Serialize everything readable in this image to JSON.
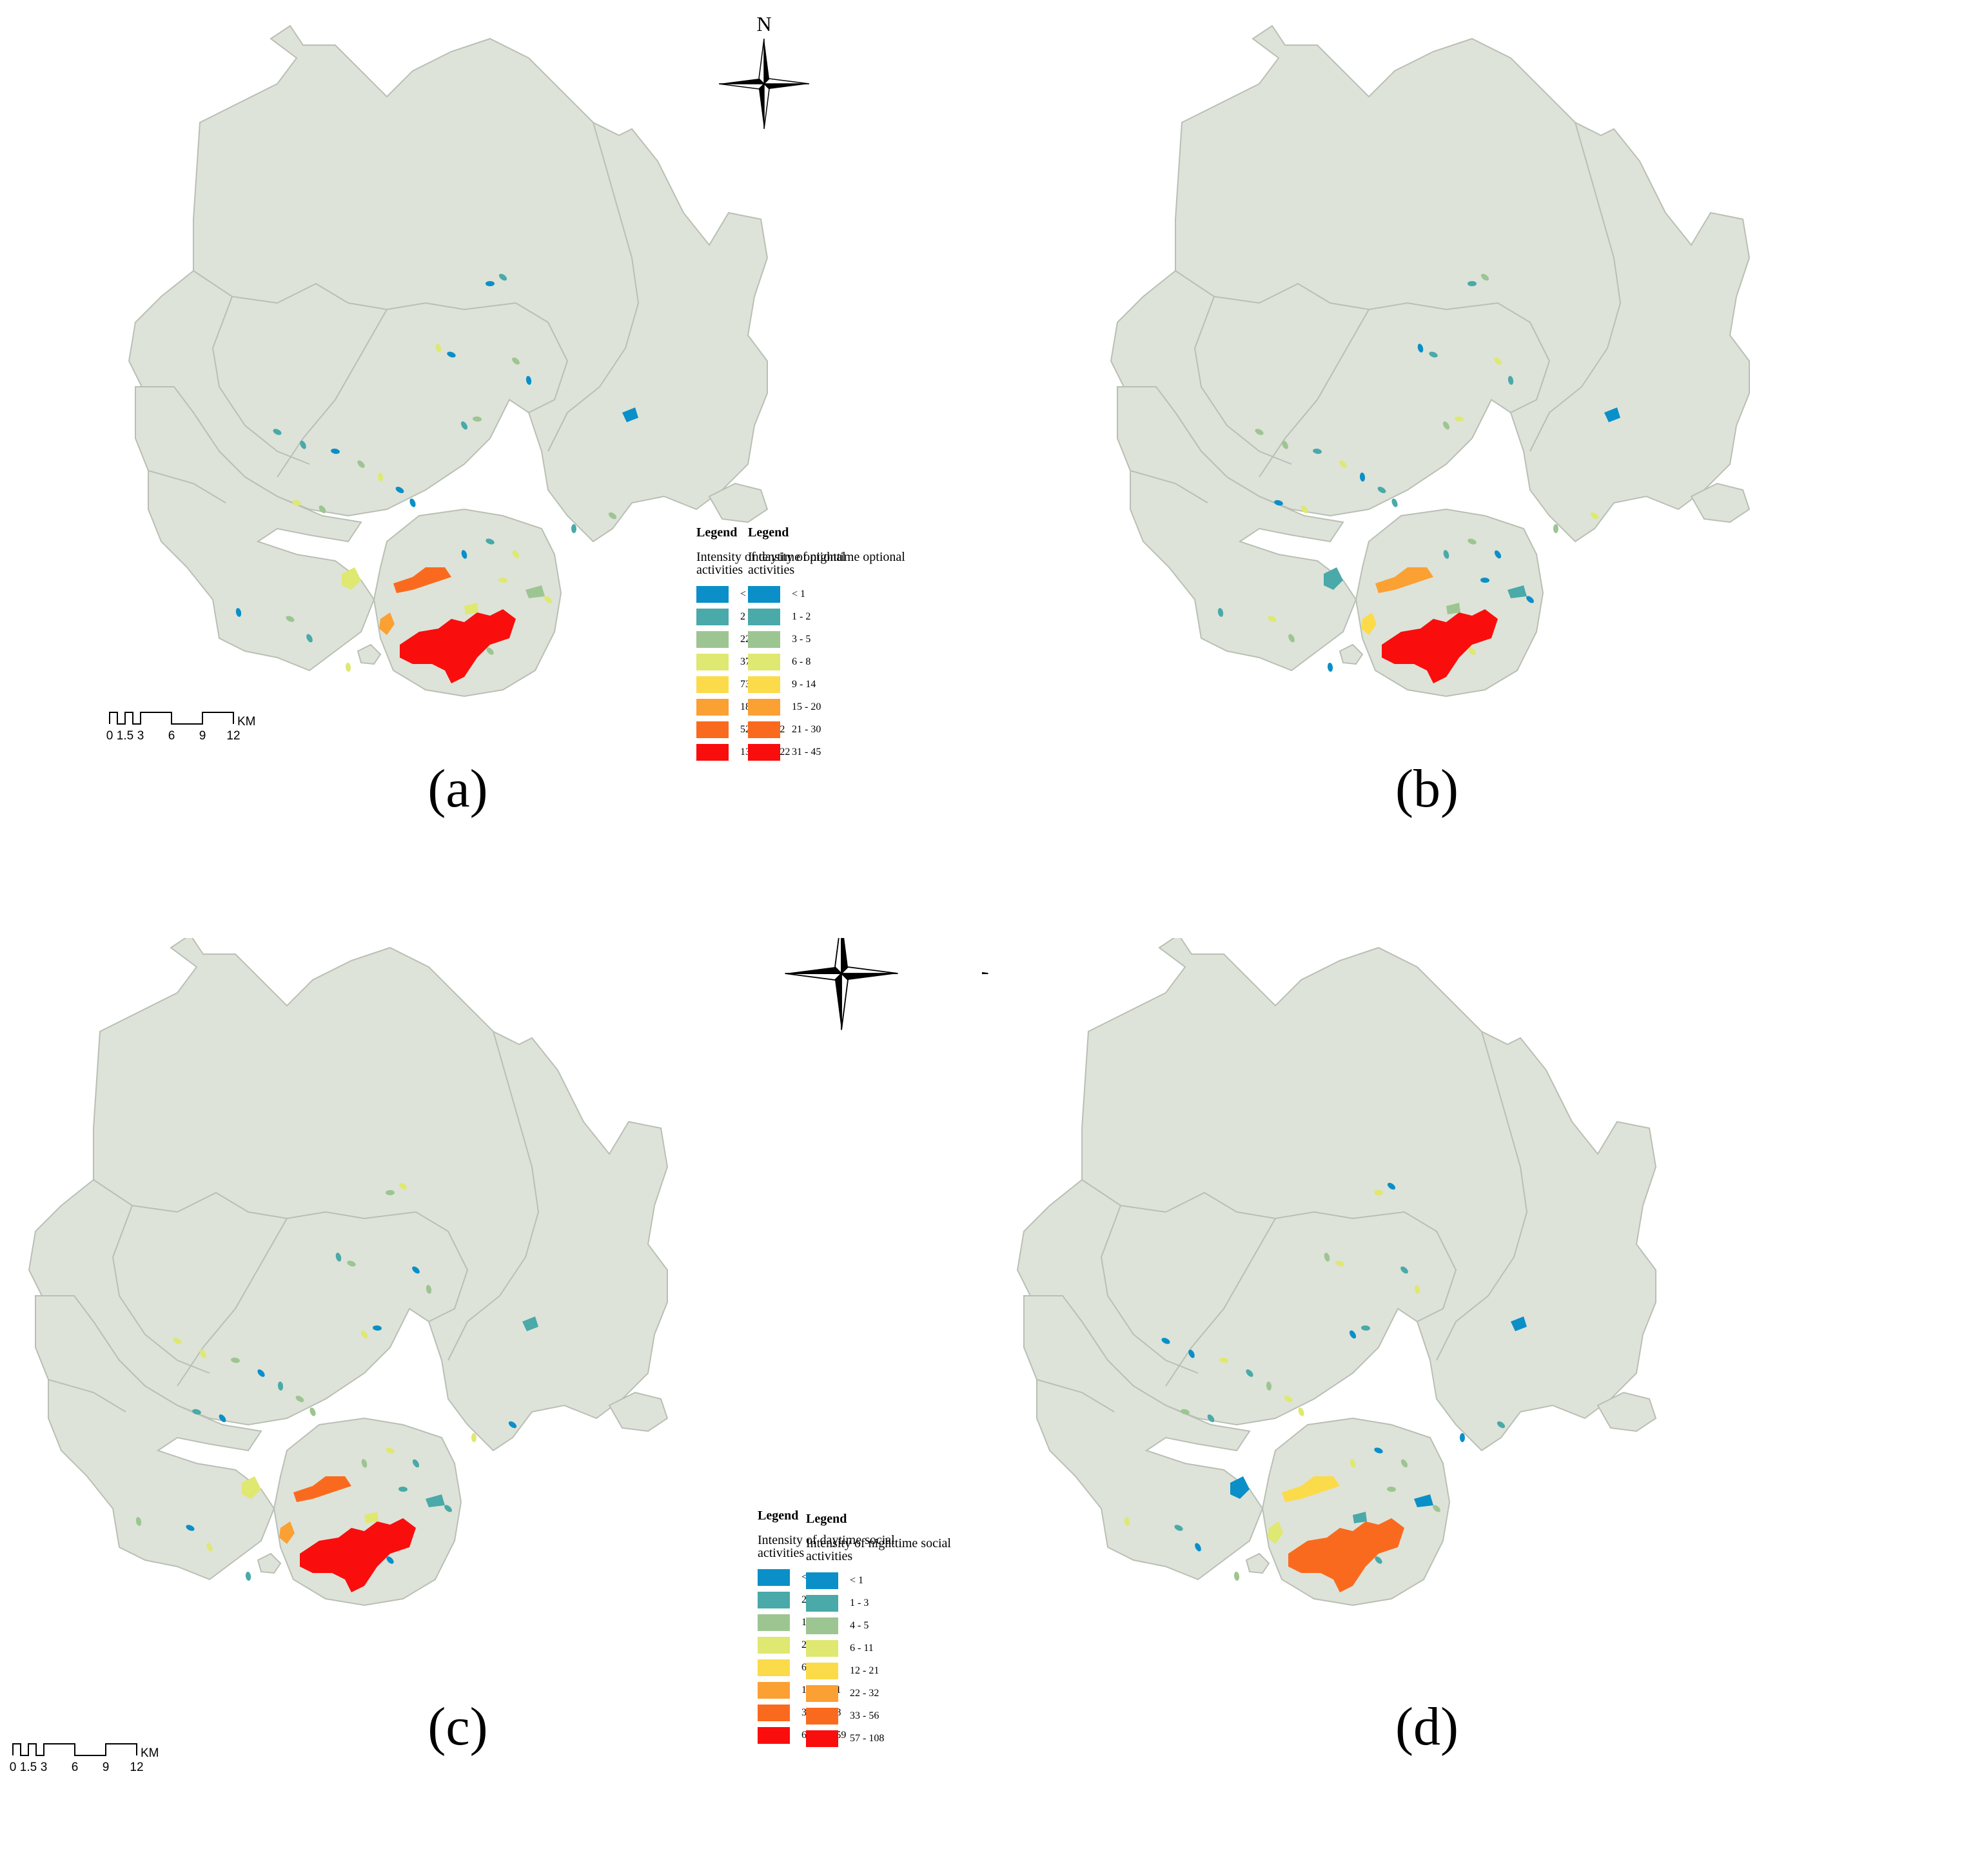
{
  "panels": [
    {
      "label": "(a)",
      "legend_heading": "Legend",
      "legend_title": "Intensity of daytime optional activities",
      "classes": [
        "< 2",
        "2 - 21",
        "22 - 36",
        "37 - 72",
        "73 - 180",
        "181 - 523",
        "524 - 1342",
        "1343 - 3022"
      ]
    },
    {
      "label": "(b)",
      "legend_heading": "Legend",
      "legend_title": "Intensity of nighttime optional activities",
      "classes": [
        "< 1",
        "1 - 2",
        "3 - 5",
        "6 - 8",
        "9 - 14",
        "15 - 20",
        "21 - 30",
        "31 - 45"
      ]
    },
    {
      "label": "(c)",
      "legend_heading": "Legend",
      "legend_title": "Intensity of daytime social activities",
      "classes": [
        "< 2",
        "2 - 11",
        "12 - 24",
        "25 - 61",
        "62 - 177",
        "178 - 351",
        "352 - 628",
        "629 - 1459"
      ]
    },
    {
      "label": "(d)",
      "legend_heading": "Legend",
      "legend_title": "Intensity of nighttime social activities",
      "classes": [
        "< 1",
        "1 - 3",
        "4 - 5",
        "6 - 11",
        "12 - 21",
        "22 - 32",
        "33 - 56",
        "57 - 108"
      ]
    }
  ],
  "class_colors": [
    "#0a8fc9",
    "#4aa9a9",
    "#9dc592",
    "#dfe870",
    "#fbdb4a",
    "#fba033",
    "#fa6a1e",
    "#fa0d0d"
  ],
  "north_arrow": {
    "label": "N"
  },
  "scale_bar": {
    "ticks": [
      "0",
      "1.5",
      "3",
      "6",
      "9",
      "12"
    ],
    "unit": "KM"
  },
  "hotspot_class_by_panel": [
    {
      "main_core": 7,
      "north_patch": 6,
      "west_patch": 5,
      "small_a": 3,
      "small_b": 2,
      "lake_patch": 3,
      "east_lake": 0
    },
    {
      "main_core": 7,
      "north_patch": 5,
      "west_patch": 4,
      "small_a": 2,
      "small_b": 1,
      "lake_patch": 1,
      "east_lake": 0
    },
    {
      "main_core": 7,
      "north_patch": 6,
      "west_patch": 5,
      "small_a": 3,
      "small_b": 1,
      "lake_patch": 3,
      "east_lake": 1
    },
    {
      "main_core": 6,
      "north_patch": 4,
      "west_patch": 3,
      "small_a": 1,
      "small_b": 0,
      "lake_patch": 0,
      "east_lake": 0
    }
  ]
}
